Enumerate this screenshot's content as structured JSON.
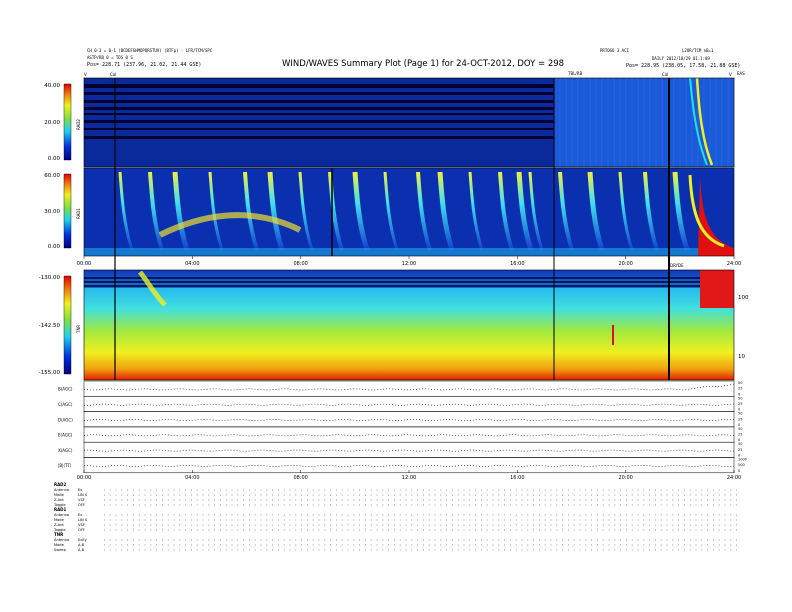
{
  "header": {
    "left_line1": "CH 0-3 = 0-1 (BCDEFGHMOPQRSTUV) (BTFp) - LFR/TCM/SPC",
    "left_line2": "ASTP/RB 0 = TDS 0 S",
    "left_line3": "Pos= 228.71 (237.96, 21.02, 21.44 GSE)",
    "right_line1": "L2OR/TCM nB=1",
    "right_line2": "DAILY 2012/10/29 01:1:09",
    "right_line3": "Pos= 228.95 (238.05, 17.58, 21.88 GSE)",
    "center_small": "PRTOGO 3 ACI",
    "title": "WIND/WAVES Summary Plot (Page 1) for 24-OCT-2012, DOY = 298",
    "top_left_marker": "V",
    "top_right_marker": "V",
    "top_right_label": "EAS",
    "cal_label": "Cal"
  },
  "colors": {
    "dark_blue": "#000c8a",
    "blue": "#1040d8",
    "cyan": "#20c8f0",
    "green": "#7ad838",
    "yellow": "#f0f020",
    "orange": "#f08010",
    "red": "#e01010"
  },
  "chart_data": [
    {
      "type": "heatmap",
      "label": "RAD2",
      "colorbar_ticks": [
        "40.00",
        "20.00",
        "0.00"
      ],
      "colorbar_range": [
        0,
        40
      ],
      "annotation": "TBL/RB"
    },
    {
      "type": "heatmap",
      "label": "RAD1",
      "colorbar_ticks": [
        "60.00",
        "30.00",
        "0.00"
      ],
      "colorbar_range": [
        0,
        60
      ],
      "x_ticks": [
        "00:00",
        "04:00",
        "08:00",
        "12:00",
        "16:00",
        "20:00",
        "24:00"
      ],
      "annotation": "DRYDE"
    },
    {
      "type": "heatmap",
      "label": "TNR",
      "colorbar_ticks": [
        "-130.00",
        "-142.50",
        "-155.00"
      ],
      "colorbar_range": [
        -155,
        -130
      ],
      "right_ticks": [
        "100",
        "10"
      ]
    },
    {
      "type": "line",
      "label": "EBt/B-components",
      "rows": [
        {
          "label": "B(AGC)",
          "ticks": [
            "50",
            "25",
            "0"
          ]
        },
        {
          "label": "C(AGC)",
          "ticks": [
            "50",
            "25",
            "0"
          ]
        },
        {
          "label": "D(AGC)",
          "ticks": [
            "50",
            "25",
            "0"
          ]
        },
        {
          "label": "E(AGC)",
          "ticks": [
            "50",
            "25",
            "0"
          ]
        },
        {
          "label": "X(AGC)",
          "ticks": [
            "50",
            "25",
            "0"
          ]
        },
        {
          "label": "|B|(TT)",
          "ticks": [
            "1000",
            "500",
            "0"
          ]
        }
      ],
      "x_ticks": [
        "00:00",
        "04:00",
        "08:00",
        "12:00",
        "16:00",
        "20:00",
        "24:00"
      ]
    }
  ],
  "footer": {
    "groups": [
      {
        "title": "RAD2",
        "rows": [
          {
            "label": "Antenna",
            "value": "Ex"
          },
          {
            "label": "Mode",
            "value": "LIN S"
          },
          {
            "label": "Z-Ant",
            "value": "VSF"
          },
          {
            "label": "Toggle",
            "value": "OFF"
          }
        ]
      },
      {
        "title": "RAD1",
        "rows": [
          {
            "label": "Antenna",
            "value": "Ex"
          },
          {
            "label": "Mode",
            "value": "LIN S"
          },
          {
            "label": "Z-Ant",
            "value": "VSF"
          },
          {
            "label": "Toggle",
            "value": "OFF"
          }
        ]
      },
      {
        "title": "TNR",
        "rows": [
          {
            "label": "Antenna",
            "value": "ExEy"
          },
          {
            "label": "Mode",
            "value": "A,B"
          },
          {
            "label": "Sweep",
            "value": "A,B"
          }
        ]
      }
    ]
  }
}
